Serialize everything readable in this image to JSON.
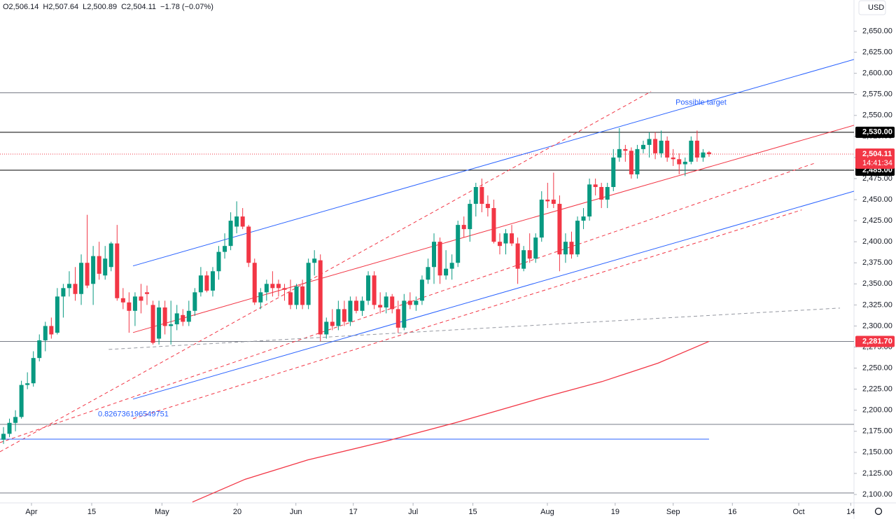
{
  "chart_data": {
    "type": "candlestick",
    "header": [
      {
        "text": "O2,506.14",
        "color": "#131722"
      },
      {
        "text": "H2,507.64",
        "color": "#131722"
      },
      {
        "text": "L2,500.89",
        "color": "#131722"
      },
      {
        "text": "C2,504.11",
        "color": "#131722"
      },
      {
        "text": "−1.78 (−0.07%)",
        "color": "#131722"
      }
    ],
    "currency": "USD",
    "up_color": "#089981",
    "down_color": "#f23645",
    "ylim": [
      2090,
      2687
    ],
    "xlim": [
      -0.585,
      142.24
    ],
    "yticks": [
      {
        "value": 2100,
        "label": "2,100.00"
      },
      {
        "value": 2125,
        "label": "2,125.00"
      },
      {
        "value": 2150,
        "label": "2,150.00"
      },
      {
        "value": 2175,
        "label": "2,175.00"
      },
      {
        "value": 2200,
        "label": "2,200.00"
      },
      {
        "value": 2225,
        "label": "2,225.00"
      },
      {
        "value": 2250,
        "label": "2,250.00"
      },
      {
        "value": 2275,
        "label": "2,275.00"
      },
      {
        "value": 2300,
        "label": "2,300.00"
      },
      {
        "value": 2325,
        "label": "2,325.00"
      },
      {
        "value": 2350,
        "label": "2,350.00"
      },
      {
        "value": 2375,
        "label": "2,375.00"
      },
      {
        "value": 2400,
        "label": "2,400.00"
      },
      {
        "value": 2425,
        "label": "2,425.00"
      },
      {
        "value": 2450,
        "label": "2,450.00"
      },
      {
        "value": 2475,
        "label": "2,475.00"
      },
      {
        "value": 2500,
        "label": "2,500.00"
      },
      {
        "value": 2525,
        "label": "2,525.00"
      },
      {
        "value": 2550,
        "label": "2,550.00"
      },
      {
        "value": 2575,
        "label": "2,575.00"
      },
      {
        "value": 2600,
        "label": "2,600.00"
      },
      {
        "value": 2625,
        "label": "2,625.00"
      },
      {
        "value": 2650,
        "label": "2,650.00"
      }
    ],
    "xticks": [
      {
        "value": 4.68,
        "label": "Apr"
      },
      {
        "value": 14.75,
        "label": "15"
      },
      {
        "value": 26.5,
        "label": "May"
      },
      {
        "value": 39.1,
        "label": "20"
      },
      {
        "value": 48.9,
        "label": "Jun"
      },
      {
        "value": 58.5,
        "label": "17"
      },
      {
        "value": 68.5,
        "label": "Jul"
      },
      {
        "value": 78.5,
        "label": "15"
      },
      {
        "value": 90.96,
        "label": "Aug"
      },
      {
        "value": 102.3,
        "label": "19"
      },
      {
        "value": 112.0,
        "label": "Sep"
      },
      {
        "value": 121.9,
        "label": "16"
      },
      {
        "value": 133.0,
        "label": "Oct"
      },
      {
        "value": 141.7,
        "label": "14"
      }
    ],
    "ohlc": [
      [
        2165,
        2180,
        2160,
        2172
      ],
      [
        2172,
        2190,
        2168,
        2185
      ],
      [
        2185,
        2200,
        2175,
        2192
      ],
      [
        2192,
        2235,
        2190,
        2230
      ],
      [
        2230,
        2245,
        2225,
        2232
      ],
      [
        2232,
        2270,
        2228,
        2262
      ],
      [
        2262,
        2290,
        2258,
        2283
      ],
      [
        2283,
        2305,
        2270,
        2300
      ],
      [
        2300,
        2310,
        2285,
        2290
      ],
      [
        2292,
        2345,
        2290,
        2335
      ],
      [
        2335,
        2350,
        2310,
        2345
      ],
      [
        2345,
        2365,
        2335,
        2350
      ],
      [
        2350,
        2370,
        2330,
        2338
      ],
      [
        2338,
        2385,
        2325,
        2375
      ],
      [
        2375,
        2432,
        2345,
        2348
      ],
      [
        2350,
        2395,
        2325,
        2383
      ],
      [
        2383,
        2400,
        2355,
        2362
      ],
      [
        2360,
        2395,
        2355,
        2380
      ],
      [
        2370,
        2400,
        2365,
        2398
      ],
      [
        2398,
        2420,
        2330,
        2333
      ],
      [
        2333,
        2345,
        2320,
        2328
      ],
      [
        2328,
        2340,
        2292,
        2318
      ],
      [
        2318,
        2340,
        2300,
        2335
      ],
      [
        2335,
        2350,
        2315,
        2330
      ],
      [
        2340,
        2348,
        2325,
        2338
      ],
      [
        2325,
        2330,
        2278,
        2280
      ],
      [
        2285,
        2330,
        2278,
        2322
      ],
      [
        2322,
        2330,
        2290,
        2300
      ],
      [
        2300,
        2330,
        2278,
        2302
      ],
      [
        2302,
        2325,
        2295,
        2315
      ],
      [
        2313,
        2320,
        2300,
        2305
      ],
      [
        2305,
        2330,
        2300,
        2318
      ],
      [
        2318,
        2345,
        2312,
        2340
      ],
      [
        2340,
        2370,
        2335,
        2360
      ],
      [
        2360,
        2365,
        2340,
        2342
      ],
      [
        2342,
        2370,
        2335,
        2365
      ],
      [
        2365,
        2395,
        2355,
        2388
      ],
      [
        2388,
        2410,
        2380,
        2395
      ],
      [
        2395,
        2435,
        2390,
        2425
      ],
      [
        2418,
        2448,
        2410,
        2430
      ],
      [
        2430,
        2440,
        2415,
        2418
      ],
      [
        2418,
        2420,
        2370,
        2375
      ],
      [
        2375,
        2380,
        2325,
        2328
      ],
      [
        2328,
        2345,
        2320,
        2340
      ],
      [
        2340,
        2355,
        2330,
        2350
      ],
      [
        2350,
        2365,
        2335,
        2345
      ],
      [
        2350,
        2355,
        2335,
        2345
      ],
      [
        2345,
        2350,
        2330,
        2343
      ],
      [
        2340,
        2355,
        2320,
        2325
      ],
      [
        2325,
        2350,
        2320,
        2347
      ],
      [
        2347,
        2355,
        2320,
        2325
      ],
      [
        2325,
        2380,
        2320,
        2375
      ],
      [
        2375,
        2390,
        2360,
        2380
      ],
      [
        2378,
        2385,
        2282,
        2290
      ],
      [
        2290,
        2310,
        2285,
        2305
      ],
      [
        2305,
        2320,
        2295,
        2300
      ],
      [
        2300,
        2330,
        2295,
        2320
      ],
      [
        2320,
        2330,
        2300,
        2305
      ],
      [
        2305,
        2335,
        2300,
        2330
      ],
      [
        2330,
        2335,
        2315,
        2318
      ],
      [
        2318,
        2335,
        2312,
        2330
      ],
      [
        2330,
        2365,
        2325,
        2360
      ],
      [
        2360,
        2365,
        2320,
        2325
      ],
      [
        2325,
        2340,
        2315,
        2322
      ],
      [
        2322,
        2340,
        2315,
        2335
      ],
      [
        2335,
        2338,
        2315,
        2320
      ],
      [
        2320,
        2330,
        2292,
        2298
      ],
      [
        2298,
        2338,
        2295,
        2330
      ],
      [
        2330,
        2340,
        2320,
        2325
      ],
      [
        2325,
        2335,
        2318,
        2330
      ],
      [
        2330,
        2360,
        2325,
        2355
      ],
      [
        2355,
        2380,
        2350,
        2370
      ],
      [
        2370,
        2410,
        2350,
        2400
      ],
      [
        2400,
        2405,
        2350,
        2360
      ],
      [
        2360,
        2390,
        2355,
        2368
      ],
      [
        2368,
        2385,
        2355,
        2375
      ],
      [
        2375,
        2425,
        2370,
        2420
      ],
      [
        2420,
        2430,
        2405,
        2415
      ],
      [
        2415,
        2450,
        2400,
        2445
      ],
      [
        2445,
        2470,
        2430,
        2465
      ],
      [
        2465,
        2475,
        2435,
        2445
      ],
      [
        2445,
        2455,
        2430,
        2440
      ],
      [
        2440,
        2450,
        2398,
        2400
      ],
      [
        2400,
        2410,
        2385,
        2395
      ],
      [
        2398,
        2415,
        2385,
        2410
      ],
      [
        2410,
        2420,
        2395,
        2398
      ],
      [
        2398,
        2405,
        2350,
        2368
      ],
      [
        2368,
        2395,
        2365,
        2390
      ],
      [
        2390,
        2410,
        2375,
        2380
      ],
      [
        2380,
        2410,
        2375,
        2405
      ],
      [
        2405,
        2460,
        2400,
        2450
      ],
      [
        2450,
        2470,
        2440,
        2448
      ],
      [
        2450,
        2482,
        2440,
        2445
      ],
      [
        2445,
        2455,
        2365,
        2385
      ],
      [
        2385,
        2410,
        2375,
        2400
      ],
      [
        2400,
        2412,
        2380,
        2385
      ],
      [
        2385,
        2430,
        2382,
        2425
      ],
      [
        2425,
        2440,
        2415,
        2430
      ],
      [
        2430,
        2475,
        2425,
        2468
      ],
      [
        2468,
        2475,
        2455,
        2465
      ],
      [
        2465,
        2470,
        2440,
        2450
      ],
      [
        2450,
        2470,
        2440,
        2465
      ],
      [
        2465,
        2510,
        2460,
        2500
      ],
      [
        2500,
        2535,
        2495,
        2510
      ],
      [
        2510,
        2515,
        2495,
        2508
      ],
      [
        2508,
        2512,
        2475,
        2480
      ],
      [
        2480,
        2515,
        2475,
        2510
      ],
      [
        2510,
        2520,
        2505,
        2515
      ],
      [
        2515,
        2530,
        2500,
        2522
      ],
      [
        2522,
        2530,
        2498,
        2505
      ],
      [
        2505,
        2532,
        2500,
        2520
      ],
      [
        2520,
        2525,
        2495,
        2500
      ],
      [
        2500,
        2510,
        2490,
        2498
      ],
      [
        2498,
        2505,
        2480,
        2492
      ],
      [
        2492,
        2500,
        2478,
        2495
      ],
      [
        2495,
        2525,
        2492,
        2520
      ],
      [
        2520,
        2532,
        2495,
        2500
      ],
      [
        2500,
        2510,
        2495,
        2506
      ],
      [
        2506.14,
        2507.64,
        2500.89,
        2504.11
      ]
    ],
    "levels": [
      {
        "value": 2576.8,
        "color": "#787b86"
      },
      {
        "value": 2530,
        "color": "#000000",
        "label": "2,530.00"
      },
      {
        "value": 2485,
        "color": "#000000",
        "label": "2,485.00"
      },
      {
        "value": 2281.7,
        "color": "#787b86",
        "label": "2,281.70"
      },
      {
        "value": 2183.2,
        "color": "#787b86"
      },
      {
        "value": 2101.7,
        "color": "#787b86"
      }
    ],
    "last_price": {
      "value": 2504.11,
      "label": "2,504.11",
      "countdown": "14:41:34",
      "color": "#f23645"
    },
    "drawings": [
      {
        "x": [
          21.66,
          142.24
        ],
        "y": [
          2371.3,
          2616.4
        ],
        "color": "#2962ff",
        "dash": false
      },
      {
        "x": [
          21.66,
          142.24
        ],
        "y": [
          2213.2,
          2460
        ],
        "color": "#2962ff",
        "dash": false
      },
      {
        "x": [
          21.66,
          142.24
        ],
        "y": [
          2292.2,
          2538.3
        ],
        "color": "#f23645",
        "dash": false
      },
      {
        "x": [
          -0.585,
          108.3
        ],
        "y": [
          2150.7,
          2578.4
        ],
        "color": "#f23645",
        "dash": true
      },
      {
        "x": [
          -0.585,
          135.8
        ],
        "y": [
          2161.6,
          2493.6
        ],
        "color": "#f23645",
        "dash": true
      },
      {
        "x": [
          21.66,
          133.5
        ],
        "y": [
          2189.9,
          2437.8
        ],
        "color": "#f23645",
        "dash": true
      },
      {
        "x": [
          17.6,
          139.9
        ],
        "y": [
          2272.2,
          2321.3
        ],
        "color": "#9598a1",
        "dash": true
      },
      {
        "x": [
          -0.585,
          118
        ],
        "y": [
          2165.7,
          2165.7
        ],
        "color": "#2962ff",
        "dash": false
      }
    ],
    "ma": {
      "x": [
        31.6,
        40.4,
        50.9,
        63.8,
        75.5,
        81.4,
        90.7,
        100.1,
        109.5,
        118
      ],
      "y": [
        2091,
        2118,
        2141,
        2163,
        2185,
        2197,
        2216,
        2234,
        2256,
        2281.7
      ],
      "color": "#f23645"
    },
    "annotations": [
      {
        "text": "Possible target",
        "x": 112.4,
        "y": 2565,
        "color": "#2962ff"
      },
      {
        "text": "0.826736196549751",
        "x": 15.8,
        "y": 2195,
        "color": "#2962ff"
      }
    ]
  }
}
